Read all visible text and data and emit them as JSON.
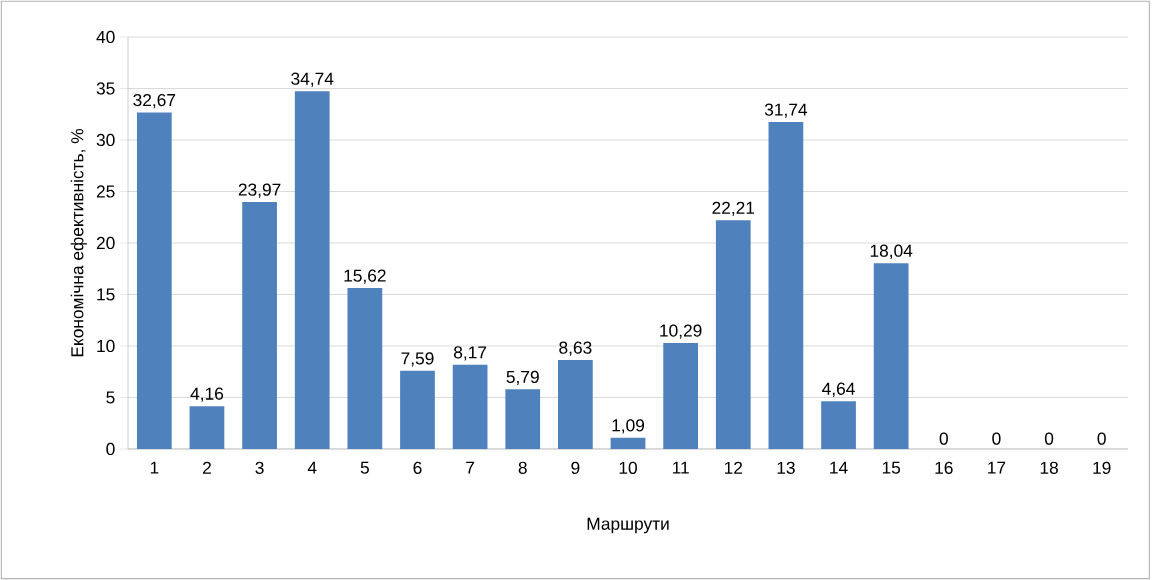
{
  "chart_data": {
    "type": "bar",
    "xlabel": "Маршрути",
    "ylabel": "Економічна ефективність, %",
    "categories": [
      "1",
      "2",
      "3",
      "4",
      "5",
      "6",
      "7",
      "8",
      "9",
      "10",
      "11",
      "12",
      "13",
      "14",
      "15",
      "16",
      "17",
      "18",
      "19"
    ],
    "values": [
      32.67,
      4.16,
      23.97,
      34.74,
      15.62,
      7.59,
      8.17,
      5.79,
      8.63,
      1.09,
      10.29,
      22.21,
      31.74,
      4.64,
      18.04,
      0,
      0,
      0,
      0
    ],
    "value_labels": [
      "32,67",
      "4,16",
      "23,97",
      "34,74",
      "15,62",
      "7,59",
      "8,17",
      "5,79",
      "8,63",
      "1,09",
      "10,29",
      "22,21",
      "31,74",
      "4,64",
      "18,04",
      "0",
      "0",
      "0",
      "0"
    ],
    "color": "#4f81bd",
    "ylim": [
      0,
      40
    ],
    "yticks": [
      0,
      5,
      10,
      15,
      20,
      25,
      30,
      35,
      40
    ],
    "grid": "y"
  }
}
